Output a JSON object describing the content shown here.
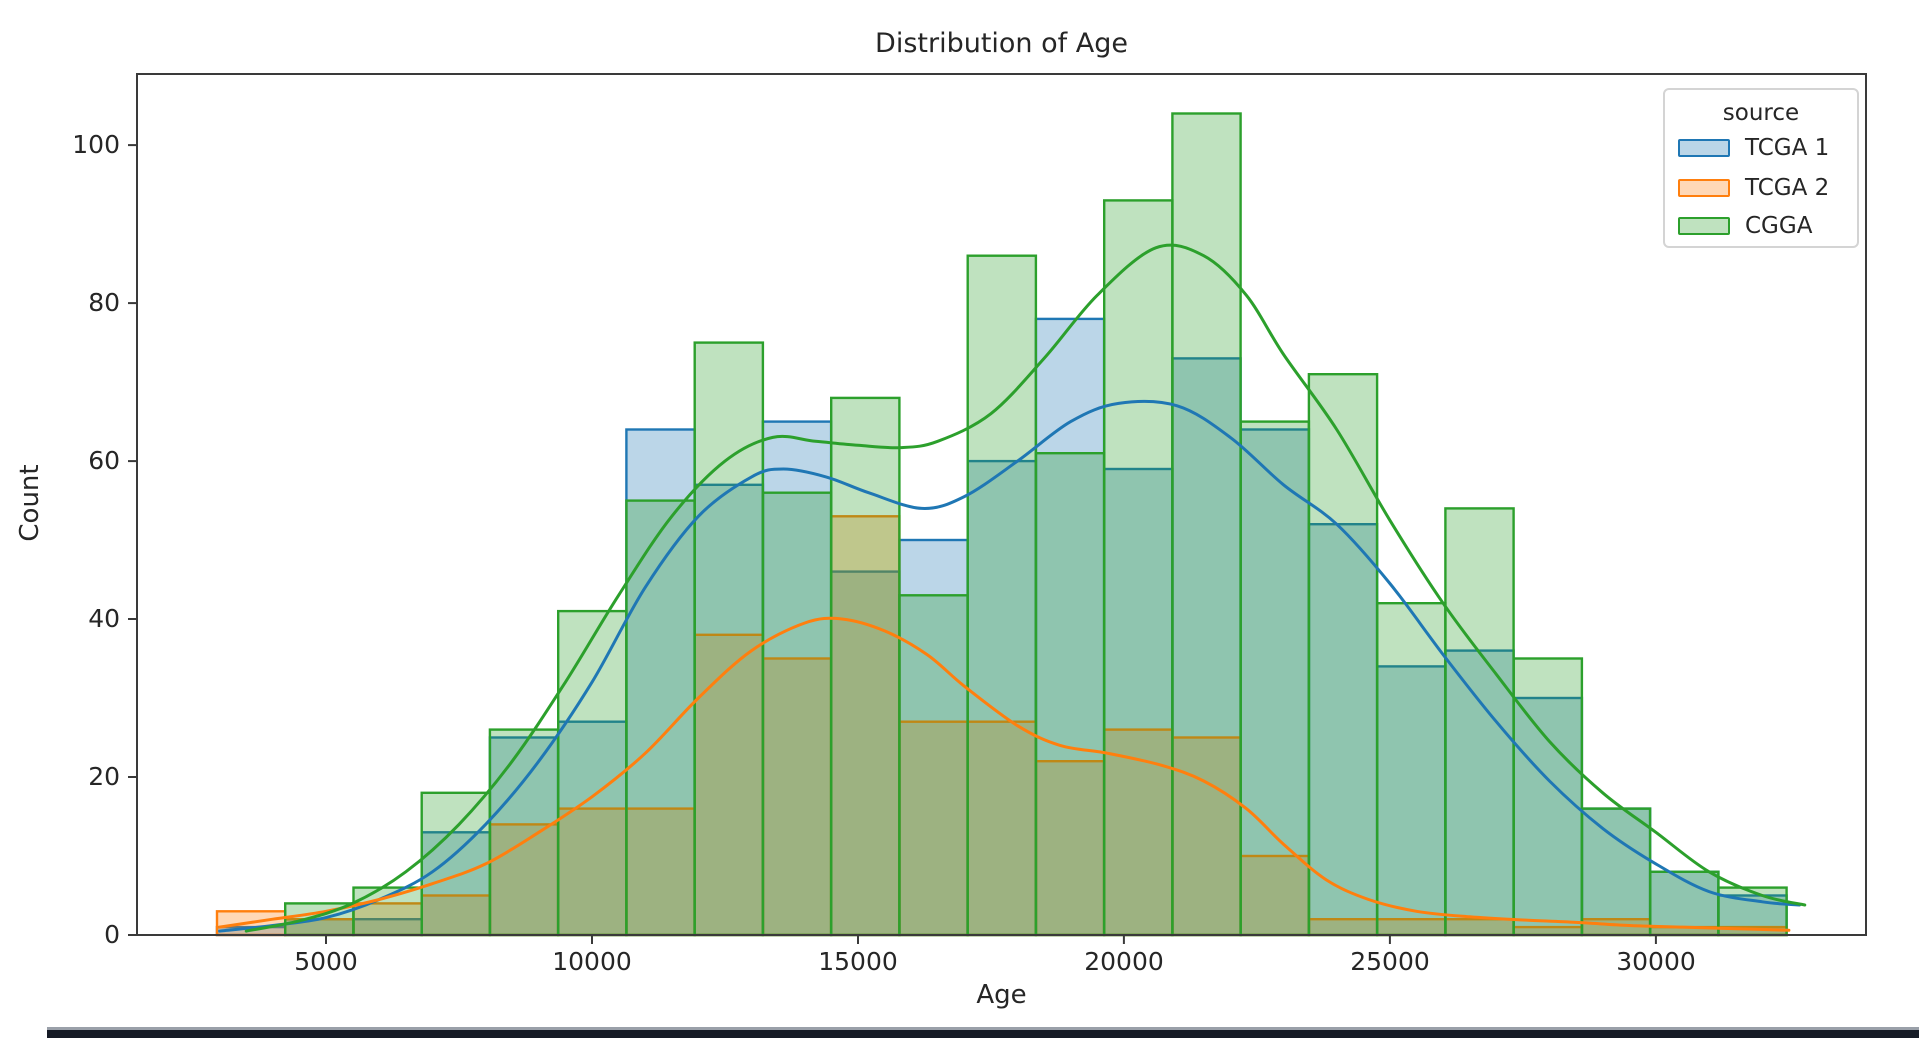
{
  "chart_data": {
    "type": "histogram",
    "title": "Distribution of Age",
    "xlabel": "Age",
    "ylabel": "Count",
    "legend_title": "source",
    "xlim": [
      1447,
      33950
    ],
    "ylim": [
      0,
      109
    ],
    "x_ticks": [
      5000,
      10000,
      15000,
      20000,
      25000,
      30000
    ],
    "y_ticks": [
      0,
      20,
      40,
      60,
      80,
      100
    ],
    "grid": "off",
    "legend_position": "upper right",
    "bin_start": 2950,
    "bin_width": 1283,
    "bin_edges": [
      2950,
      4233,
      5516,
      6799,
      8082,
      9365,
      10648,
      11931,
      13214,
      14497,
      15780,
      17063,
      18346,
      19629,
      20912,
      22195,
      23478,
      24761,
      26044,
      27327,
      28610,
      29893,
      31176,
      32459
    ],
    "series": [
      {
        "name": "TCGA 1",
        "color": "#1f77b4",
        "fill_alpha": 0.3,
        "counts": [
          1,
          2,
          2,
          13,
          25,
          27,
          64,
          57,
          65,
          46,
          50,
          60,
          78,
          59,
          73,
          64,
          52,
          34,
          36,
          30,
          16,
          8,
          5
        ],
        "kde": [
          [
            3000,
            0.5
          ],
          [
            4000,
            1.2
          ],
          [
            5000,
            2.2
          ],
          [
            6000,
            4.5
          ],
          [
            7000,
            8
          ],
          [
            8000,
            14
          ],
          [
            9000,
            22
          ],
          [
            10000,
            32
          ],
          [
            11000,
            44
          ],
          [
            12000,
            53
          ],
          [
            13000,
            58
          ],
          [
            13600,
            59
          ],
          [
            14400,
            58
          ],
          [
            15200,
            56
          ],
          [
            16200,
            54
          ],
          [
            17000,
            55.5
          ],
          [
            18000,
            60
          ],
          [
            19000,
            65
          ],
          [
            19900,
            67.3
          ],
          [
            21000,
            67
          ],
          [
            22000,
            63
          ],
          [
            23000,
            57
          ],
          [
            24000,
            52
          ],
          [
            25000,
            44.5
          ],
          [
            26000,
            35.5
          ],
          [
            27000,
            27
          ],
          [
            28000,
            19.5
          ],
          [
            29000,
            13.5
          ],
          [
            30000,
            9
          ],
          [
            31000,
            5.5
          ],
          [
            32000,
            4.2
          ],
          [
            32700,
            3.8
          ]
        ]
      },
      {
        "name": "TCGA 2",
        "color": "#ff7f0e",
        "fill_alpha": 0.3,
        "counts": [
          3,
          2,
          4,
          5,
          14,
          16,
          16,
          38,
          35,
          53,
          27,
          27,
          22,
          26,
          25,
          10,
          2,
          2,
          2,
          1,
          2,
          1,
          1
        ],
        "kde": [
          [
            3000,
            1
          ],
          [
            4000,
            2
          ],
          [
            5000,
            3
          ],
          [
            6000,
            4.5
          ],
          [
            7000,
            6.5
          ],
          [
            8000,
            9
          ],
          [
            9000,
            13
          ],
          [
            10000,
            17.5
          ],
          [
            11000,
            23
          ],
          [
            12000,
            30
          ],
          [
            13000,
            36
          ],
          [
            14000,
            39.5
          ],
          [
            14700,
            40
          ],
          [
            15500,
            38.5
          ],
          [
            16300,
            35.5
          ],
          [
            17000,
            31.5
          ],
          [
            18000,
            26.5
          ],
          [
            18800,
            24
          ],
          [
            19700,
            23
          ],
          [
            20700,
            21.5
          ],
          [
            21500,
            19.5
          ],
          [
            22300,
            16
          ],
          [
            23000,
            11.5
          ],
          [
            23800,
            7
          ],
          [
            24600,
            4.5
          ],
          [
            25500,
            3
          ],
          [
            26500,
            2.3
          ],
          [
            27500,
            1.9
          ],
          [
            28500,
            1.6
          ],
          [
            29500,
            1.2
          ],
          [
            30500,
            1
          ],
          [
            31500,
            0.8
          ],
          [
            32500,
            0.6
          ]
        ]
      },
      {
        "name": "CGGA",
        "color": "#2ca02c",
        "fill_alpha": 0.3,
        "counts": [
          0,
          4,
          6,
          18,
          26,
          41,
          55,
          75,
          56,
          68,
          43,
          86,
          61,
          93,
          104,
          65,
          71,
          42,
          54,
          35,
          16,
          8,
          6
        ],
        "kde": [
          [
            3500,
            0.5
          ],
          [
            4500,
            1.8
          ],
          [
            5500,
            4
          ],
          [
            6500,
            8
          ],
          [
            7500,
            14
          ],
          [
            8500,
            22
          ],
          [
            9500,
            32
          ],
          [
            10500,
            43
          ],
          [
            11500,
            53
          ],
          [
            12500,
            60
          ],
          [
            13400,
            63
          ],
          [
            14200,
            62.5
          ],
          [
            15000,
            62
          ],
          [
            15800,
            61.7
          ],
          [
            16500,
            62.5
          ],
          [
            17500,
            66
          ],
          [
            18500,
            73
          ],
          [
            19500,
            81
          ],
          [
            20600,
            87
          ],
          [
            21500,
            86
          ],
          [
            22300,
            81
          ],
          [
            23000,
            73.5
          ],
          [
            24000,
            64
          ],
          [
            25000,
            52.5
          ],
          [
            26000,
            42
          ],
          [
            27000,
            33
          ],
          [
            28000,
            24.5
          ],
          [
            29000,
            18
          ],
          [
            30000,
            13
          ],
          [
            31000,
            8
          ],
          [
            32000,
            5
          ],
          [
            32800,
            3.8
          ]
        ]
      }
    ],
    "axis_color": "#3a3a3a",
    "text_color": "#262626"
  },
  "footer_bar": {
    "color": "#161b26",
    "edge_color": "#9aa0a9"
  }
}
